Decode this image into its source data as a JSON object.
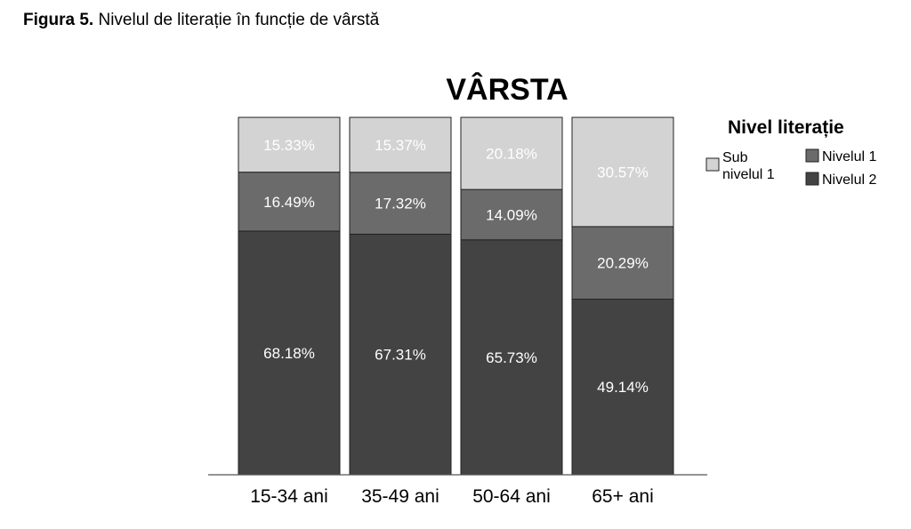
{
  "caption": {
    "bold": "Figura 5.",
    "text": "Nivelul de literație în funcție de vârstă"
  },
  "chart_data": {
    "type": "bar",
    "stacked": true,
    "title": "VÂRSTA",
    "categories": [
      "15-34 ani",
      "35-49 ani",
      "50-64 ani",
      "65+ ani"
    ],
    "ylim": [
      0,
      100
    ],
    "grid": false,
    "legend": {
      "title": "Nivel literație",
      "placement": "top-right",
      "entries": [
        {
          "label_lines": [
            "Sub",
            "nivelul 1"
          ],
          "color": "#d3d3d3"
        },
        {
          "label_lines": [
            "Nivelul 1"
          ],
          "color": "#6b6b6b"
        },
        {
          "label_lines": [
            "Nivelul 2"
          ],
          "color": "#434343"
        }
      ]
    },
    "series": [
      {
        "name": "Nivelul 2",
        "color": "#434343",
        "values": [
          68.18,
          67.31,
          65.73,
          49.14
        ],
        "labels": [
          "68.18%",
          "67.31%",
          "65.73%",
          "49.14%"
        ]
      },
      {
        "name": "Nivelul 1",
        "color": "#6b6b6b",
        "values": [
          16.49,
          17.32,
          14.09,
          20.29
        ],
        "labels": [
          "16.49%",
          "17.32%",
          "14.09%",
          "20.29%"
        ]
      },
      {
        "name": "Sub nivelul 1",
        "color": "#d3d3d3",
        "values": [
          15.33,
          15.37,
          20.18,
          30.57
        ],
        "labels": [
          "15.33%",
          "15.37%",
          "20.18%",
          "30.57%"
        ]
      }
    ]
  }
}
